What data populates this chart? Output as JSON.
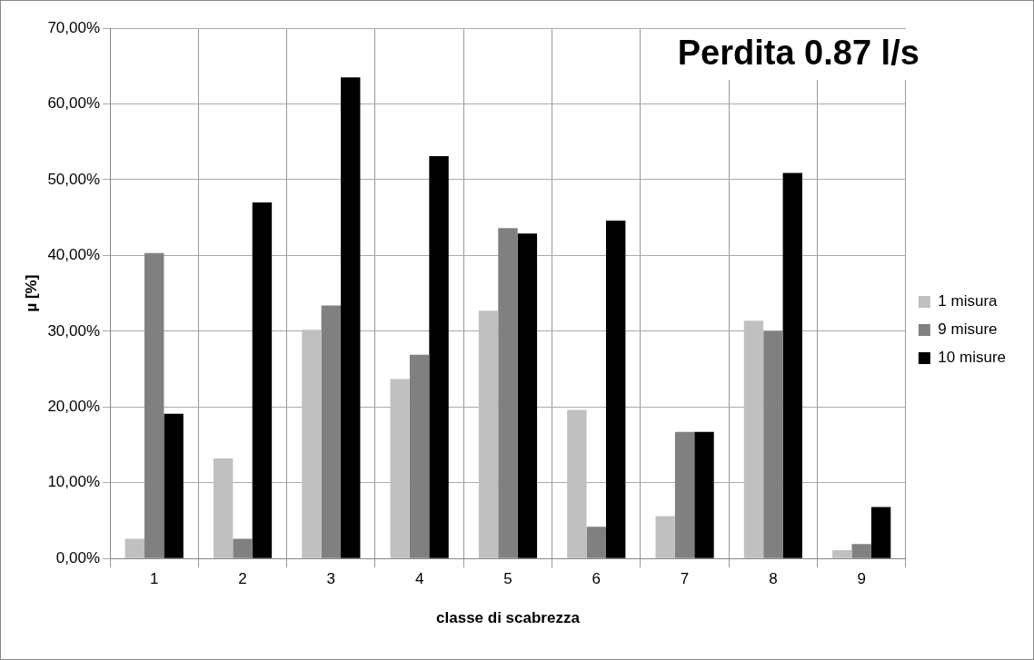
{
  "chart_data": {
    "type": "bar",
    "title": "Perdita 0.87 l/s",
    "xlabel": "classe di scabrezza",
    "ylabel": "µ [%]",
    "categories": [
      "1",
      "2",
      "3",
      "4",
      "5",
      "6",
      "7",
      "8",
      "9"
    ],
    "series": [
      {
        "name": "1 misura",
        "color": "#c0c0c0",
        "values": [
          2.6,
          13.2,
          30.2,
          23.7,
          32.7,
          19.6,
          5.6,
          31.4,
          1.1
        ]
      },
      {
        "name": "9 misure",
        "color": "#808080",
        "values": [
          40.3,
          2.6,
          33.4,
          26.9,
          43.6,
          4.2,
          16.7,
          30.0,
          1.9
        ]
      },
      {
        "name": "10 misure",
        "color": "#000000",
        "values": [
          19.1,
          47.0,
          63.5,
          53.1,
          42.9,
          44.6,
          16.7,
          50.9,
          6.8
        ]
      }
    ],
    "ylim": [
      0,
      70
    ],
    "yticks": [
      {
        "value": 0,
        "label": "0,00%"
      },
      {
        "value": 10,
        "label": "10,00%"
      },
      {
        "value": 20,
        "label": "20,00%"
      },
      {
        "value": 30,
        "label": "30,00%"
      },
      {
        "value": 40,
        "label": "40,00%"
      },
      {
        "value": 50,
        "label": "50,00%"
      },
      {
        "value": 60,
        "label": "60,00%"
      },
      {
        "value": 70,
        "label": "70,00%"
      }
    ],
    "grid": true,
    "legend": "right"
  }
}
